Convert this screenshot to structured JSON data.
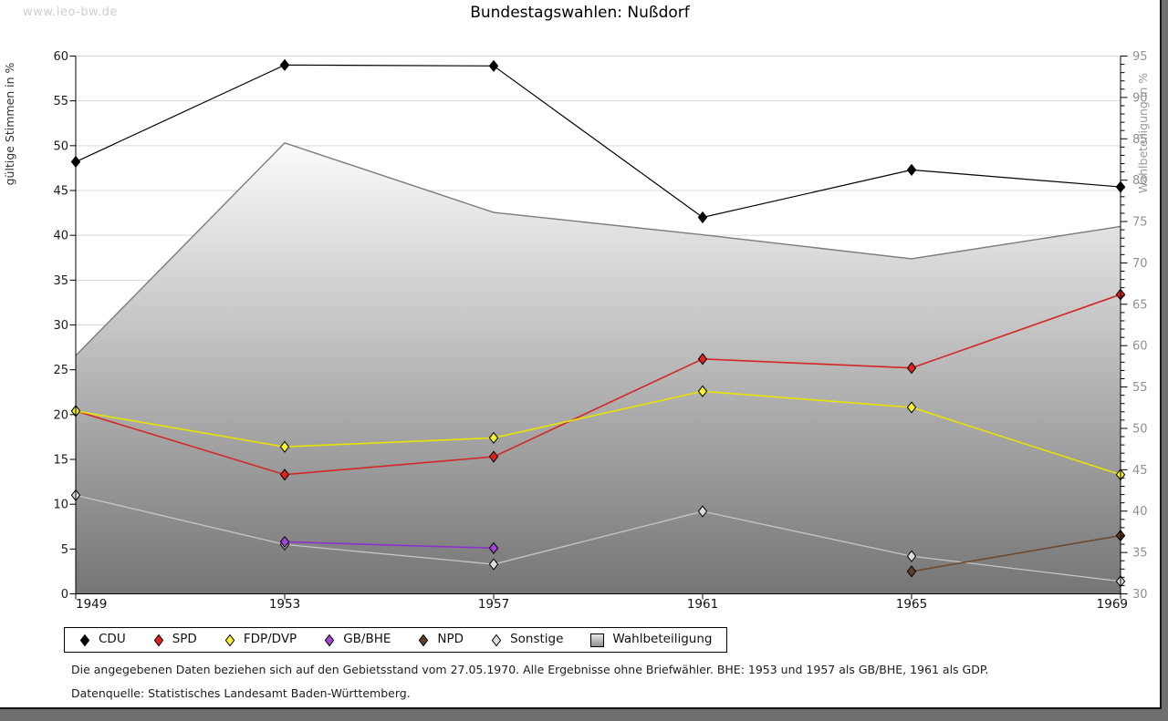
{
  "watermark": "www.leo-bw.de",
  "title": "Bundestagswahlen: Nußdorf",
  "footer": {
    "line1": "Die angegebenen Daten beziehen sich auf den Gebietsstand vom 27.05.1970. Alle Ergebnisse ohne Briefwähler. BHE: 1953 und 1957 als GB/BHE, 1961 als GDP.",
    "line2": "Datenquelle: Statistisches Landesamt Baden-Württemberg."
  },
  "chart_data": {
    "type": "line",
    "title": "Bundestagswahlen: Nußdorf",
    "categories": [
      "1949",
      "1953",
      "1957",
      "1961",
      "1965",
      "1969"
    ],
    "left_axis": {
      "label": "gültige Stimmen in %",
      "min": 0,
      "max": 60,
      "tick_step": 5
    },
    "right_axis": {
      "label": "Wahlbeteiligung in %",
      "min": 30,
      "max": 95,
      "tick_step": 5,
      "minor_tick_step": 1
    },
    "grid": "horizontal",
    "legend_position": "bottom",
    "series": [
      {
        "name": "CDU",
        "axis": "left",
        "kind": "line",
        "color": "#000000",
        "marker_fill": "#000000",
        "values": [
          48.2,
          59.0,
          58.9,
          42.0,
          47.3,
          45.4
        ]
      },
      {
        "name": "SPD",
        "axis": "left",
        "kind": "line",
        "color": "#d42626",
        "marker_fill": "#de2222",
        "values": [
          20.4,
          13.3,
          15.3,
          26.2,
          25.2,
          33.4
        ]
      },
      {
        "name": "FDP/DVP",
        "axis": "left",
        "kind": "line",
        "color": "#e8e400",
        "marker_fill": "#f6f22e",
        "values": [
          20.4,
          16.4,
          17.4,
          22.6,
          20.8,
          13.3
        ]
      },
      {
        "name": "GB/BHE",
        "axis": "left",
        "kind": "line",
        "color": "#8c33cc",
        "marker_fill": "#a244d6",
        "values": [
          null,
          5.8,
          5.1,
          null,
          null,
          null
        ]
      },
      {
        "name": "NPD",
        "axis": "left",
        "kind": "line",
        "color": "#6b4a32",
        "marker_fill": "#5e4026",
        "values": [
          null,
          null,
          null,
          null,
          2.5,
          6.5
        ]
      },
      {
        "name": "Sonstige",
        "axis": "left",
        "kind": "line",
        "color": "#c6c6c6",
        "marker_fill": "#dedede",
        "values": [
          11.0,
          5.5,
          3.3,
          9.2,
          4.2,
          1.4
        ]
      },
      {
        "name": "Wahlbeteiligung",
        "axis": "right",
        "kind": "area",
        "color": "#7b7b7b",
        "values": [
          58.8,
          84.5,
          76.1,
          73.4,
          70.5,
          74.4
        ]
      }
    ]
  }
}
